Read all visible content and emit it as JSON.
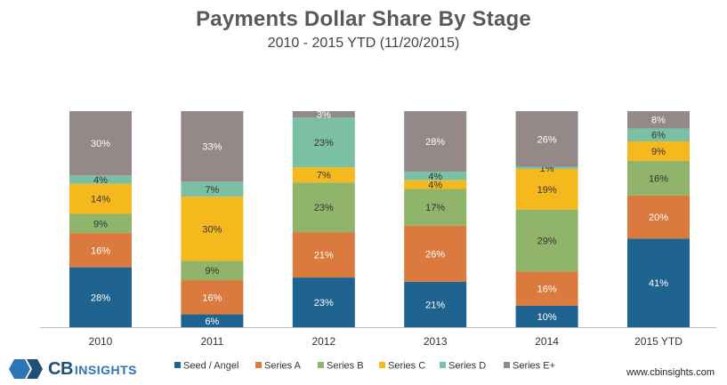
{
  "header": {
    "title": "Payments Dollar Share By Stage",
    "subtitle": "2010 - 2015 YTD (11/20/2015)"
  },
  "footer": {
    "logo_main": "CB",
    "logo_sub": "INSIGHTS",
    "website": "www.cbinsights.com"
  },
  "colors": {
    "Seed / Angel": "#1f6390",
    "Series A": "#db7a3f",
    "Series B": "#8fb46a",
    "Series C": "#f5b91d",
    "Series D": "#7cc0a4",
    "Series E+": "#948888"
  },
  "chart_data": {
    "type": "bar",
    "stacked": true,
    "percent": true,
    "categories": [
      "2010",
      "2011",
      "2012",
      "2013",
      "2014",
      "2015 YTD"
    ],
    "ylim": [
      0,
      100
    ],
    "legend": "bottom",
    "grid": false,
    "series": [
      {
        "name": "Seed / Angel",
        "values": [
          28,
          6,
          23,
          21,
          10,
          41
        ],
        "labels": [
          "28%",
          "6%",
          "23%",
          "21%",
          "10%",
          "41%"
        ]
      },
      {
        "name": "Series A",
        "values": [
          16,
          16,
          21,
          26,
          16,
          20
        ],
        "labels": [
          "16%",
          "16%",
          "21%",
          "26%",
          "16%",
          "20%"
        ]
      },
      {
        "name": "Series B",
        "values": [
          9,
          9,
          23,
          17,
          29,
          16
        ],
        "labels": [
          "9%",
          "9%",
          "23%",
          "17%",
          "29%",
          "16%"
        ]
      },
      {
        "name": "Series C",
        "values": [
          14,
          30,
          7,
          4,
          19,
          9
        ],
        "labels": [
          "14%",
          "30%",
          "7%",
          "4%",
          "19%",
          "9%"
        ]
      },
      {
        "name": "Series D",
        "values": [
          4,
          7,
          23,
          4,
          1,
          6
        ],
        "labels": [
          "4%",
          "7%",
          "23%",
          "4%",
          "1%",
          "6%"
        ]
      },
      {
        "name": "Series E+",
        "values": [
          30,
          33,
          3,
          28,
          26,
          8
        ],
        "labels": [
          "30%",
          "33%",
          "3%",
          "28%",
          "26%",
          "8%"
        ]
      }
    ]
  }
}
